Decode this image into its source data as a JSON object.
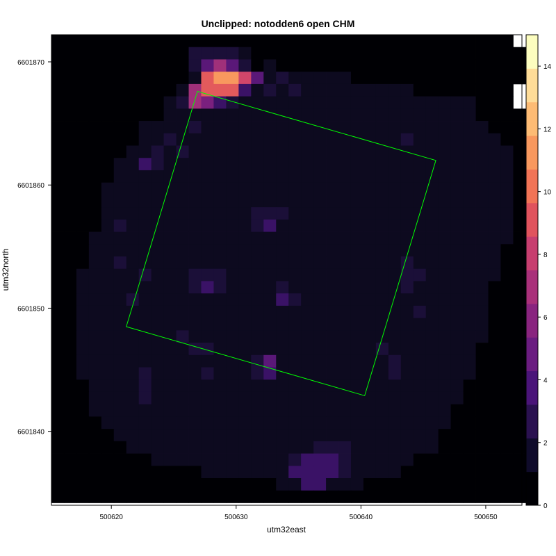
{
  "chart_data": {
    "type": "heatmap",
    "title": "Unclipped: notodden6 open CHM",
    "xlabel": "utm32east",
    "ylabel": "utm32north",
    "xlim": [
      500615.2,
      500652.9
    ],
    "ylim": [
      6601834.0,
      6601872.2
    ],
    "x_ticks": [
      500620,
      500630,
      500640,
      500650
    ],
    "y_ticks": [
      6601840,
      6601850,
      6601860,
      6601870
    ],
    "x_tick_labels": [
      "500620",
      "500630",
      "500640",
      "500650"
    ],
    "y_tick_labels": [
      "6601840",
      "6601850",
      "6601860",
      "6601870"
    ],
    "colorbar": {
      "min": 0,
      "max": 15,
      "ticks": [
        0,
        2,
        4,
        6,
        8,
        10,
        12,
        14
      ],
      "tick_labels": [
        "0",
        "2",
        "4",
        "6",
        "8",
        "10",
        "12",
        "14"
      ],
      "colors": [
        "#000004",
        "#0f0b2a",
        "#2a1150",
        "#4a1479",
        "#6a1c80",
        "#89247f",
        "#a9307a",
        "#c73e6f",
        "#e0535d",
        "#f17456",
        "#f8985e",
        "#fdbb74",
        "#fedc98",
        "#fcfdbf"
      ]
    },
    "raster": {
      "x_start": 500615.2,
      "y_start": 6601872.2,
      "cell": 1.0,
      "rows": [
        "0000000000000000000000000000000000000",
        "00000000000222210000000000000000000000",
        "00000000000246420100000000000000000000",
        "0000000000018AA74121111100000000000000",
        "0000000000168883121211111111100000000",
        "0000000001265321111111111111111111000",
        "00000000011111111111111111111111110000",
        "00000001111211111111111111111111111000",
        "00000001121111111111111111112111111100",
        "00000011212111111111111111111111111110",
        "00000113211111111111111111111111111110",
        "00000111111111111111111111111111111110",
        "00001111111111111111111111111111111110",
        "00001111111111111111111111111111111110",
        "00001111111111112221111111111111111110",
        "00001211111111112311111111111111111110",
        "00011111111111111111111111111111111110",
        "00011111111111111111111111111111111100",
        "00011211111111111111111111112111111100",
        "00111112111222111111111111112211111100",
        "00111111111232111121111111112111111000",
        "00111121111111111132111111111111111000",
        "00111111111111111111111111111211111000",
        "00111111111111111111111111111111111000",
        "00111111112111111111111111111111111000",
        "00111111111221111111111111211111110000",
        "00111111111111112411111111121111110000",
        "00111112111121112311111111121111110000",
        "00011112111111111111111111111111100000",
        "00011112111111111111111111111111100000",
        "00011111111111111111111111111111000000",
        "00001111111111111111111111111111000000",
        "00000111111111111111111111111110000000",
        "00000011111111111111122211111110000000",
        "00000000111111111112333211111000000000",
        "00000000000011111113333211110000000000",
        "00000000000000000011331110000000000000",
        "00000000000000000000000000000000000000"
      ]
    },
    "polygon": {
      "color": "#00ff00",
      "points": [
        [
          500626.9,
          6601867.6
        ],
        [
          500646.0,
          6601862.0
        ],
        [
          500640.3,
          6601842.9
        ],
        [
          500621.2,
          6601848.5
        ]
      ]
    }
  }
}
